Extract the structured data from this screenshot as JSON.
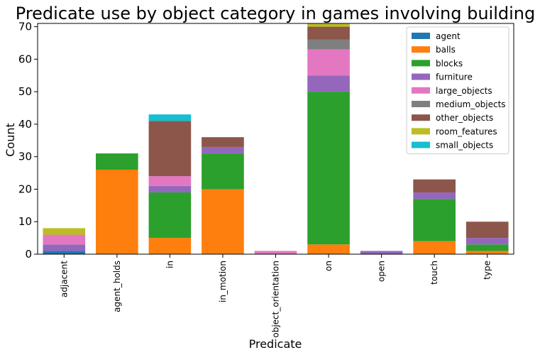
{
  "chart_data": {
    "type": "bar",
    "stacked": true,
    "title": "Predicate use by object category in games involving building",
    "xlabel": "Predicate",
    "ylabel": "Count",
    "ylim": [
      0,
      71
    ],
    "yticks": [
      0,
      10,
      20,
      30,
      40,
      50,
      60,
      70
    ],
    "legend_position": "top-right",
    "categories": [
      "adjacent",
      "agent_holds",
      "in",
      "in_motion",
      "object_orientation",
      "on",
      "open",
      "touch",
      "type"
    ],
    "series": [
      {
        "name": "agent",
        "color": "#1f77b4",
        "values": [
          1,
          0,
          0,
          0,
          0,
          0,
          0,
          0,
          0
        ]
      },
      {
        "name": "balls",
        "color": "#ff7f0e",
        "values": [
          0,
          26,
          5,
          20,
          0,
          3,
          0,
          4,
          1
        ]
      },
      {
        "name": "blocks",
        "color": "#2ca02c",
        "values": [
          0,
          5,
          14,
          11,
          0,
          47,
          0,
          13,
          2
        ]
      },
      {
        "name": "furniture",
        "color": "#9467bd",
        "values": [
          2,
          0,
          2,
          2,
          0,
          5,
          1,
          2,
          2
        ]
      },
      {
        "name": "large_objects",
        "color": "#e377c2",
        "values": [
          3,
          0,
          3,
          0,
          1,
          8,
          0,
          0,
          0
        ]
      },
      {
        "name": "medium_objects",
        "color": "#7f7f7f",
        "values": [
          0,
          0,
          0,
          0,
          0,
          3,
          0,
          0,
          0
        ]
      },
      {
        "name": "other_objects",
        "color": "#8c564b",
        "values": [
          0,
          0,
          17,
          3,
          0,
          4,
          0,
          4,
          5
        ]
      },
      {
        "name": "room_features",
        "color": "#bcbd22",
        "values": [
          2,
          0,
          0,
          0,
          0,
          1,
          0,
          0,
          0
        ]
      },
      {
        "name": "small_objects",
        "color": "#17becf",
        "values": [
          0,
          0,
          2,
          0,
          0,
          0,
          0,
          0,
          0
        ]
      }
    ]
  }
}
